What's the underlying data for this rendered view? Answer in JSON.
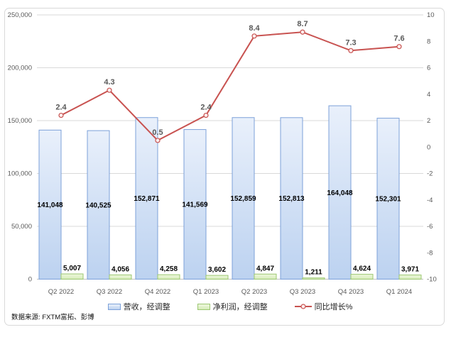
{
  "page": {
    "background": "#ffffff"
  },
  "footer": {
    "source_label": "数据来源: FXTM富拓、彭博"
  },
  "chart_data": {
    "type": "combo",
    "categories": [
      "Q2 2022",
      "Q3 2022",
      "Q4 2022",
      "Q1 2023",
      "Q2 2023",
      "Q3 2023",
      "Q4 2023",
      "Q1 2024"
    ],
    "series": [
      {
        "name": "营收，经调整",
        "type": "bar",
        "axis": "left",
        "values": [
          141048,
          140525,
          152871,
          141569,
          152859,
          152813,
          164048,
          152301
        ],
        "labels": [
          "141,048",
          "140,525",
          "152,871",
          "141,569",
          "152,859",
          "152,813",
          "164,048",
          "152,301"
        ]
      },
      {
        "name": "净利润，经调整",
        "type": "bar",
        "axis": "left",
        "values": [
          5007,
          4056,
          4258,
          3602,
          4847,
          1211,
          4624,
          3971
        ],
        "labels": [
          "5,007",
          "4,056",
          "4,258",
          "3,602",
          "4,847",
          "1,211",
          "4,624",
          "3,971"
        ]
      },
      {
        "name": "同比增长%",
        "type": "line",
        "axis": "right",
        "values": [
          2.4,
          4.3,
          0.5,
          2.4,
          8.4,
          8.7,
          7.3,
          7.6
        ],
        "labels": [
          "2.4",
          "4.3",
          "0.5",
          "2.4",
          "8.4",
          "8.7",
          "7.3",
          "7.6"
        ]
      }
    ],
    "left_axis": {
      "min": 0,
      "max": 250000,
      "ticks": [
        "250,000",
        "200,000",
        "150,000",
        "100,000",
        "50,000",
        "0"
      ]
    },
    "right_axis": {
      "min": -10,
      "max": 10,
      "ticks": [
        "10",
        "8",
        "6",
        "4",
        "2",
        "0",
        "-2",
        "-4",
        "-6",
        "-8",
        "-10"
      ]
    },
    "grid": "on",
    "legend_position": "bottom",
    "colors": {
      "revenue_fill_top": "#e9f0fb",
      "revenue_fill_bottom": "#bcd2f0",
      "revenue_border": "#7ca1d9",
      "profit_fill_top": "#edf7dc",
      "profit_fill_bottom": "#d6ecba",
      "profit_border": "#9cc772",
      "growth_line": "#c85250",
      "growth_marker_fill": "#fbecec",
      "grid_line": "#d9d9d9",
      "axis_line": "#bfbfbf",
      "tick_text": "#595959",
      "bar_label_text": "#000000",
      "line_label_text": "#595959"
    }
  }
}
